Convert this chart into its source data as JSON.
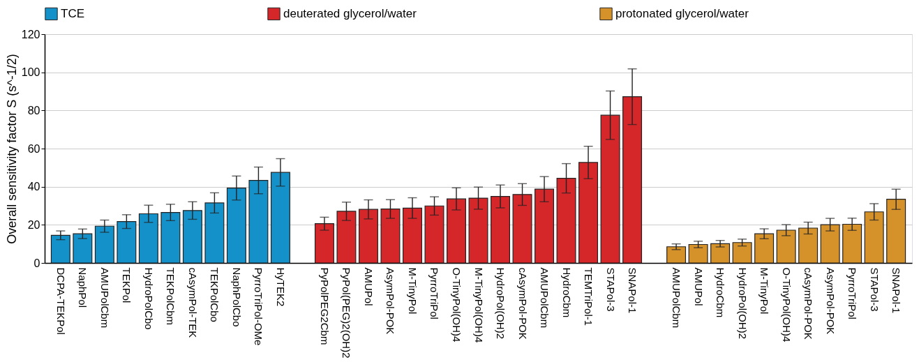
{
  "chart_data": {
    "type": "bar",
    "ylabel": "Overall sensitivity factor S (s^-1/2)",
    "categories": [
      "DCPA-TEKPol",
      "NaphPol",
      "AMUPolCbm",
      "TEKPol",
      "HydroPolCbo",
      "TEKPolCbm",
      "cAsymPol-TEK",
      "TEKPolCbo",
      "NaphPolCbo",
      "PyrroTriPol-OMe",
      "HyTEK2",
      null,
      "PyPolPEG2Cbm",
      "PyPol(PEG)2(OH)2",
      "AMUPol",
      "AsymPol-POK",
      "M-TinyPol",
      "PyrroTriPol",
      "O-TinyPol(OH)4",
      "M-TinyPol(OH)4",
      "HydroPol(OH)2",
      "cAsymPol-POK",
      "AMUPolCbm",
      "HydroCbm",
      "TEMTriPol-1",
      "STAPol-3",
      "SNAPol-1",
      null,
      "AMUPolCbm",
      "AMUPol",
      "HydroCbm",
      "HydroPol(OH)2",
      "M-TinyPol",
      "O-TinyPol(OH)4",
      "cAsymPol-POK",
      "AsymPol-POK",
      "PyrroTriPol",
      "STAPol-3",
      "SNAPol-1"
    ],
    "series": [
      {
        "name": "TCE",
        "color": "#1591c9",
        "values": [
          14.5,
          15.3,
          19.3,
          21.7,
          25.8,
          26.5,
          27.5,
          31.5,
          39.3,
          43.3,
          47.5,
          null,
          null,
          null,
          null,
          null,
          null,
          null,
          null,
          null,
          null,
          null,
          null,
          null,
          null,
          null,
          null,
          null,
          null,
          null,
          null,
          null,
          null,
          null,
          null,
          null,
          null,
          null,
          null
        ],
        "errors": [
          2.3,
          2.5,
          3.2,
          3.6,
          4.5,
          4.3,
          4.6,
          5.3,
          6.3,
          7,
          7.2,
          null,
          null,
          null,
          null,
          null,
          null,
          null,
          null,
          null,
          null,
          null,
          null,
          null,
          null,
          null,
          null,
          null,
          null,
          null,
          null,
          null,
          null,
          null,
          null,
          null,
          null,
          null,
          null
        ]
      },
      {
        "name": "deuterated glycerol/water",
        "color": "#d5262a",
        "values": [
          null,
          null,
          null,
          null,
          null,
          null,
          null,
          null,
          null,
          null,
          null,
          null,
          20.6,
          27.1,
          28.1,
          28.3,
          28.8,
          29.9,
          33.6,
          34.0,
          34.9,
          35.9,
          38.7,
          44.4,
          52.7,
          77.5,
          87.2,
          null,
          null,
          null,
          null,
          null,
          null,
          null,
          null,
          null,
          null,
          null,
          null
        ],
        "errors": [
          null,
          null,
          null,
          null,
          null,
          null,
          null,
          null,
          null,
          null,
          null,
          null,
          3.4,
          4.8,
          5,
          4.9,
          5.4,
          4.8,
          5.8,
          5.8,
          6.0,
          5.7,
          6.6,
          7.7,
          8.5,
          12.7,
          14.6,
          null,
          null,
          null,
          null,
          null,
          null,
          null,
          null,
          null,
          null,
          null,
          null
        ]
      },
      {
        "name": "protonated glycerol/water",
        "color": "#d5922a",
        "values": [
          null,
          null,
          null,
          null,
          null,
          null,
          null,
          null,
          null,
          null,
          null,
          null,
          null,
          null,
          null,
          null,
          null,
          null,
          null,
          null,
          null,
          null,
          null,
          null,
          null,
          null,
          null,
          null,
          8.5,
          9.7,
          10.1,
          10.7,
          15.3,
          17.2,
          18.3,
          20.1,
          20.3,
          26.8,
          33.4
        ],
        "errors": [
          null,
          null,
          null,
          null,
          null,
          null,
          null,
          null,
          null,
          null,
          null,
          null,
          null,
          null,
          null,
          null,
          null,
          null,
          null,
          null,
          null,
          null,
          null,
          null,
          null,
          null,
          null,
          null,
          1.5,
          1.7,
          1.7,
          1.8,
          2.6,
          2.9,
          3.1,
          3.3,
          3.2,
          4.3,
          5.3
        ]
      }
    ],
    "ylim": [
      0,
      120
    ],
    "yticks": [
      0,
      20,
      40,
      60,
      80,
      100,
      120
    ],
    "grid": "y",
    "legend": "top"
  }
}
